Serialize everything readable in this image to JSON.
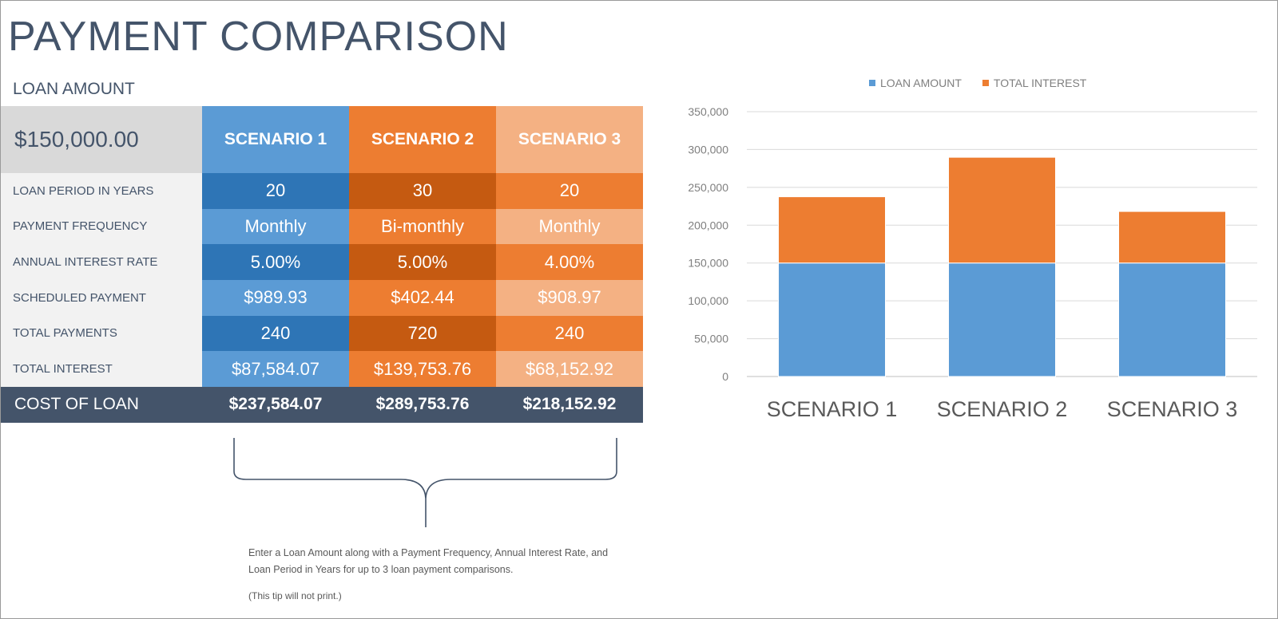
{
  "page": {
    "title": "PAYMENT COMPARISON",
    "loan_amount_label": "LOAN AMOUNT",
    "loan_amount_value": "$150,000.00"
  },
  "colors": {
    "scenario1_head": "#5b9bd5",
    "scenario1_dark": "#2e75b6",
    "scenario1_light": "#5b9bd5",
    "scenario2_head": "#ed7d31",
    "scenario2_dark": "#c55a11",
    "scenario2_light": "#ed7d31",
    "scenario3_head": "#f4b183",
    "scenario3_dark": "#ed7d31",
    "scenario3_light": "#f4b183",
    "cost_row": "#44546a"
  },
  "table": {
    "headers": [
      "SCENARIO 1",
      "SCENARIO 2",
      "SCENARIO 3"
    ],
    "rows": [
      {
        "label": "LOAN PERIOD IN YEARS",
        "values": [
          "20",
          "30",
          "20"
        ]
      },
      {
        "label": "PAYMENT FREQUENCY",
        "values": [
          "Monthly",
          "Bi-monthly",
          "Monthly"
        ]
      },
      {
        "label": "ANNUAL INTEREST RATE",
        "values": [
          "5.00%",
          "5.00%",
          "4.00%"
        ]
      },
      {
        "label": "SCHEDULED PAYMENT",
        "values": [
          "$989.93",
          "$402.44",
          "$908.97"
        ]
      },
      {
        "label": "TOTAL PAYMENTS",
        "values": [
          "240",
          "720",
          "240"
        ]
      },
      {
        "label": "TOTAL INTEREST",
        "values": [
          "$87,584.07",
          "$139,753.76",
          "$68,152.92"
        ]
      }
    ],
    "cost": {
      "label": "COST OF LOAN",
      "values": [
        "$237,584.07",
        "$289,753.76",
        "$218,152.92"
      ]
    }
  },
  "tip": {
    "text": "Enter a Loan Amount along with a Payment Frequency, Annual Interest Rate, and Loan Period in Years for up to 3 loan payment comparisons.",
    "note": "(This tip will not print.)"
  },
  "chart_data": {
    "type": "bar",
    "stacked": true,
    "categories": [
      "SCENARIO 1",
      "SCENARIO 2",
      "SCENARIO 3"
    ],
    "series": [
      {
        "name": "LOAN AMOUNT",
        "color": "#5b9bd5",
        "values": [
          150000,
          150000,
          150000
        ]
      },
      {
        "name": "TOTAL INTEREST",
        "color": "#ed7d31",
        "values": [
          87584.07,
          139753.76,
          68152.92
        ]
      }
    ],
    "ylim": [
      0,
      350000
    ],
    "yticks": [
      0,
      50000,
      100000,
      150000,
      200000,
      250000,
      300000,
      350000
    ],
    "ytick_labels": [
      "0",
      "50,000",
      "100,000",
      "150,000",
      "200,000",
      "250,000",
      "300,000",
      "350,000"
    ],
    "grid": true,
    "legend": "top"
  }
}
